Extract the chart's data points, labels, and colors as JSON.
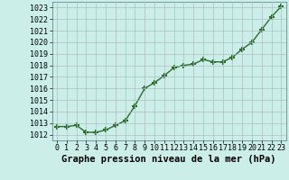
{
  "x": [
    0,
    1,
    2,
    3,
    4,
    5,
    6,
    7,
    8,
    9,
    10,
    11,
    12,
    13,
    14,
    15,
    16,
    17,
    18,
    19,
    20,
    21,
    22,
    23
  ],
  "y": [
    1012.7,
    1012.7,
    1012.8,
    1012.2,
    1012.2,
    1012.4,
    1012.8,
    1013.2,
    1014.5,
    1016.0,
    1016.5,
    1017.1,
    1017.8,
    1018.0,
    1018.1,
    1018.5,
    1018.3,
    1018.3,
    1018.7,
    1019.4,
    1020.0,
    1021.1,
    1022.2,
    1023.1
  ],
  "ylim": [
    1011.5,
    1023.5
  ],
  "xlim": [
    -0.5,
    23.5
  ],
  "yticks": [
    1012,
    1013,
    1014,
    1015,
    1016,
    1017,
    1018,
    1019,
    1020,
    1021,
    1022,
    1023
  ],
  "xticks": [
    0,
    1,
    2,
    3,
    4,
    5,
    6,
    7,
    8,
    9,
    10,
    11,
    12,
    13,
    14,
    15,
    16,
    17,
    18,
    19,
    20,
    21,
    22,
    23
  ],
  "line_color": "#2d6a2d",
  "marker": "+",
  "marker_size": 5,
  "marker_lw": 1.5,
  "line_width": 1.0,
  "bg_color": "#cceee8",
  "grid_color": "#aabfbf",
  "xlabel": "Graphe pression niveau de la mer (hPa)",
  "xlabel_fontsize": 7.5,
  "tick_fontsize": 6.0,
  "ytick_fontsize": 6.0
}
